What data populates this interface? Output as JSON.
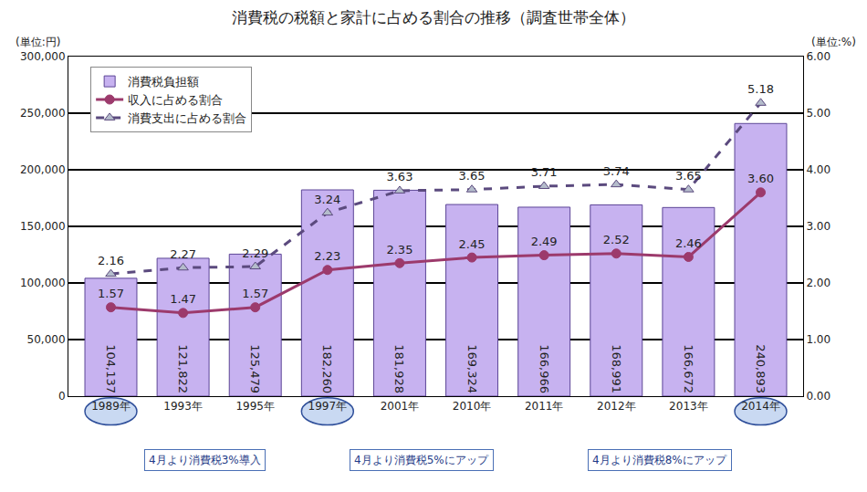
{
  "chart_data": {
    "type": "bar",
    "title": "消費税の税額と家計に占める割合の推移（調査世帯全体）",
    "ylabel": "(単位:円)",
    "y2label": "(単位:%)",
    "categories": [
      "1989年",
      "1993年",
      "1995年",
      "1997年",
      "2001年",
      "2010年",
      "2011年",
      "2012年",
      "2013年",
      "2014年"
    ],
    "series": [
      {
        "name": "消費税負担額",
        "type": "bar",
        "color": "#c7b2f0",
        "values": [
          104137,
          121822,
          125479,
          182260,
          181928,
          169324,
          166966,
          168991,
          166672,
          240893
        ],
        "value_labels": [
          "104,137",
          "121,822",
          "125,479",
          "182,260",
          "181,928",
          "169,324",
          "166,966",
          "168,991",
          "166,672",
          "240,893"
        ]
      },
      {
        "name": "収入に占める割合",
        "type": "line",
        "axis": "y2",
        "color": "#9c3a6c",
        "marker": "circle",
        "line_style": "solid",
        "values": [
          1.57,
          1.47,
          1.57,
          2.23,
          2.35,
          2.45,
          2.49,
          2.52,
          2.46,
          3.6
        ],
        "value_labels": [
          "1.57",
          "1.47",
          "1.57",
          "2.23",
          "2.35",
          "2.45",
          "2.49",
          "2.52",
          "2.46",
          "3.60"
        ]
      },
      {
        "name": "消費支出に占める割合",
        "type": "line",
        "axis": "y2",
        "color": "#5b4a7e",
        "marker": "triangle-up",
        "line_style": "dash",
        "values": [
          2.16,
          2.27,
          2.29,
          3.24,
          3.63,
          3.65,
          3.71,
          3.74,
          3.65,
          5.18
        ],
        "value_labels": [
          "2.16",
          "2.27",
          "2.29",
          "3.24",
          "3.63",
          "3.65",
          "3.71",
          "3.74",
          "3.65",
          "5.18"
        ]
      }
    ],
    "ylim": [
      0,
      300000
    ],
    "yticks": [
      0,
      {
        "value": 50000,
        "label": "50,000"
      },
      {
        "value": 100000,
        "label": "100,000"
      },
      {
        "value": 150000,
        "label": "150,000"
      },
      {
        "value": 200000,
        "label": "200,000"
      },
      {
        "value": 250000,
        "label": "250,000"
      },
      {
        "value": 300000,
        "label": "300,000"
      }
    ],
    "y2lim": [
      0,
      6
    ],
    "y2ticks": [
      {
        "value": 0,
        "label": "0.00"
      },
      {
        "value": 1,
        "label": "1.00"
      },
      {
        "value": 2,
        "label": "2.00"
      },
      {
        "value": 3,
        "label": "3.00"
      },
      {
        "value": 4,
        "label": "4.00"
      },
      {
        "value": 5,
        "label": "5.00"
      },
      {
        "value": 6,
        "label": "6.00"
      }
    ],
    "grid": true,
    "legend": "top-left",
    "data_labels": true,
    "annotations": [
      {
        "text": "4月より消費税3%導入",
        "category": "1989年"
      },
      {
        "text": "4月より消費税5%にアップ",
        "category": "1997年"
      },
      {
        "text": "4月より消費税8%にアップ",
        "category": "2014年"
      }
    ]
  }
}
